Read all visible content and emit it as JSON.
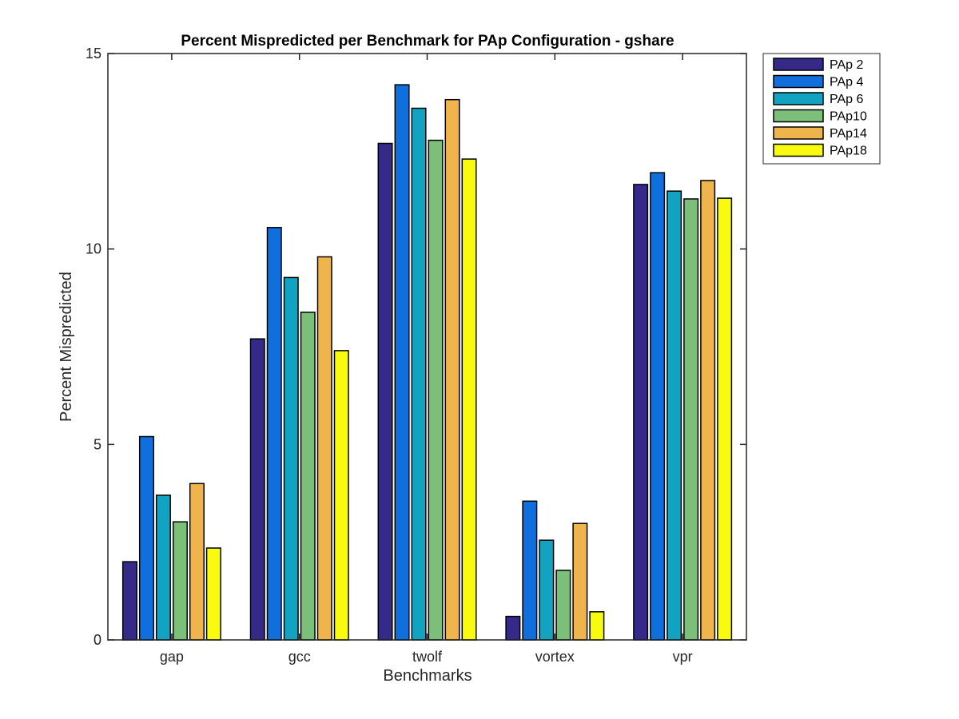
{
  "chart_data": {
    "type": "bar",
    "title": "Percent Mispredicted per Benchmark for PAp Configuration - gshare",
    "xlabel": "Benchmarks",
    "ylabel": "Percent Mispredicted",
    "ylim": [
      0,
      15
    ],
    "yticks": [
      "0",
      "5",
      "10",
      "15"
    ],
    "categories": [
      "gap",
      "gcc",
      "twolf",
      "vortex",
      "vpr"
    ],
    "series": [
      {
        "name": "PAp 2",
        "color": "#352a87",
        "values": [
          2.0,
          7.7,
          12.7,
          0.6,
          11.65
        ]
      },
      {
        "name": "PAp 4",
        "color": "#0f6fdc",
        "values": [
          5.2,
          10.55,
          14.2,
          3.55,
          11.95
        ]
      },
      {
        "name": "PAp 6",
        "color": "#12a3c2",
        "values": [
          3.7,
          9.27,
          13.6,
          2.55,
          11.48
        ]
      },
      {
        "name": "PAp10",
        "color": "#7bbf78",
        "values": [
          3.02,
          8.38,
          12.78,
          1.78,
          11.28
        ]
      },
      {
        "name": "PAp14",
        "color": "#f0b44c",
        "values": [
          4.0,
          9.8,
          13.82,
          2.98,
          11.75
        ]
      },
      {
        "name": "PAp18",
        "color": "#f9fb0e",
        "values": [
          2.35,
          7.4,
          12.3,
          0.72,
          11.3
        ]
      }
    ],
    "legend_position": "outside-top-right",
    "grid": false
  }
}
